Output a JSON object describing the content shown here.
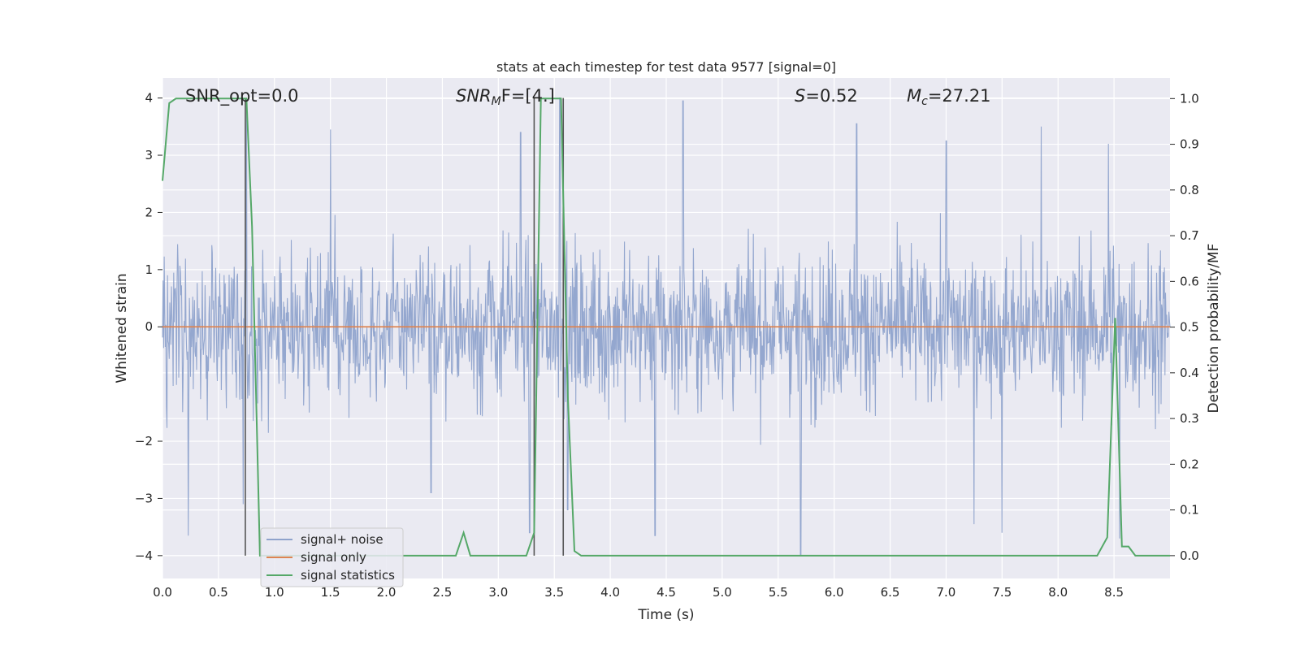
{
  "chart_data": {
    "type": "line",
    "title": "stats at each timestep for test data 9577 [signal=0]",
    "xlabel": "Time (s)",
    "ylabel_left": "Whitened strain",
    "ylabel_right": "Detection probability/MF",
    "xlim": [
      0.0,
      9.0
    ],
    "ylim_left": [
      -4.4,
      4.35
    ],
    "ylim_right": [
      -0.05,
      1.045
    ],
    "xticks": [
      "0.0",
      "0.5",
      "1.0",
      "1.5",
      "2.0",
      "2.5",
      "3.0",
      "3.5",
      "4.0",
      "4.5",
      "5.0",
      "5.5",
      "6.0",
      "6.5",
      "7.0",
      "7.5",
      "8.0",
      "8.5"
    ],
    "yticks_left": [
      "4",
      "3",
      "2",
      "1",
      "0",
      "−2",
      "−3",
      "−4"
    ],
    "yticks_right": [
      "1.0",
      "0.9",
      "0.8",
      "0.7",
      "0.6",
      "0.5",
      "0.4",
      "0.3",
      "0.2",
      "0.1",
      "0.0"
    ],
    "grid": true,
    "legend_position": "bottom-left",
    "annotations": {
      "snr_opt": "SNR_opt=0.0",
      "snr_mf_main": "SNR",
      "snr_mf_sub": "M",
      "snr_mf_rest": "F=[4.]",
      "s_name": "S",
      "s_value": "=0.52",
      "mc_main": "M",
      "mc_sub": "c",
      "mc_value": "=27.21"
    },
    "series": [
      {
        "name": "signal+ noise",
        "color": "#8fa3cc",
        "axis": "left",
        "description_values": "noisy whitened strain, roughly within [-4, 4] around 0",
        "spikes_high": [
          [
            0.75,
            4.0
          ],
          [
            3.55,
            4.0
          ],
          [
            4.65,
            3.95
          ],
          [
            6.2,
            3.55
          ],
          [
            7.0,
            3.25
          ],
          [
            7.85,
            3.5
          ],
          [
            8.45,
            3.2
          ],
          [
            1.5,
            3.45
          ],
          [
            3.2,
            3.4
          ]
        ],
        "spikes_low": [
          [
            0.23,
            -3.65
          ],
          [
            0.72,
            -3.1
          ],
          [
            2.4,
            -2.9
          ],
          [
            3.28,
            -3.6
          ],
          [
            3.62,
            -3.2
          ],
          [
            4.4,
            -3.65
          ],
          [
            5.7,
            -4.0
          ],
          [
            7.5,
            -3.6
          ],
          [
            8.55,
            -3.7
          ],
          [
            7.25,
            -3.45
          ]
        ]
      },
      {
        "name": "signal only",
        "color": "#dd8452",
        "axis": "left",
        "x": [
          0.0,
          9.0
        ],
        "y": [
          0.0,
          0.0
        ]
      },
      {
        "name": "signal statistics",
        "color": "#55a868",
        "axis": "right",
        "x": [
          0.0,
          0.06,
          0.12,
          0.2,
          0.3,
          0.4,
          0.5,
          0.6,
          0.7,
          0.75,
          0.8,
          0.87,
          0.9,
          1.0,
          1.5,
          2.0,
          2.5,
          2.62,
          2.69,
          2.75,
          2.9,
          3.1,
          3.25,
          3.32,
          3.38,
          3.44,
          3.5,
          3.56,
          3.62,
          3.68,
          3.74,
          3.9,
          4.5,
          5.0,
          6.0,
          7.0,
          8.0,
          8.35,
          8.44,
          8.51,
          8.57,
          8.63,
          8.69,
          8.81,
          9.0
        ],
        "y": [
          0.82,
          0.99,
          1.0,
          1.0,
          1.0,
          1.0,
          1.0,
          1.0,
          1.0,
          1.0,
          0.72,
          0.0,
          0.0,
          0.0,
          0.0,
          0.0,
          0.0,
          0.0,
          0.05,
          0.0,
          0.0,
          0.0,
          0.0,
          0.05,
          1.0,
          1.0,
          1.0,
          1.0,
          0.35,
          0.01,
          0.0,
          0.0,
          0.0,
          0.0,
          0.0,
          0.0,
          0.0,
          0.0,
          0.04,
          0.52,
          0.02,
          0.02,
          0.0,
          0.0,
          0.0
        ]
      }
    ],
    "vlines_x": [
      0.74,
      3.32,
      3.58
    ],
    "vlines_color": "#555555"
  }
}
